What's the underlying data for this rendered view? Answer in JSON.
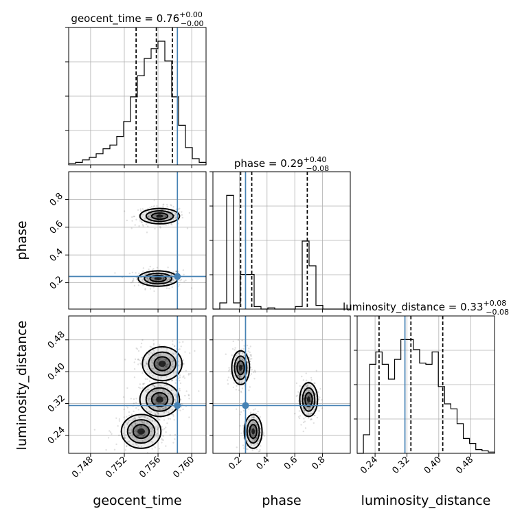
{
  "titles": {
    "geocent_time": {
      "name": "geocent_time",
      "value": "0.76",
      "plus": "+0.00",
      "minus": "−0.00"
    },
    "phase": {
      "name": "phase",
      "value": "0.29",
      "plus": "+0.40",
      "minus": "−0.08"
    },
    "luminosity_distance": {
      "name": "luminosity_distance",
      "value": "0.33",
      "plus": "+0.08",
      "minus": "−0.08"
    }
  },
  "axis_labels": {
    "x": [
      "geocent_time",
      "phase",
      "luminosity_distance"
    ],
    "y": [
      "phase",
      "luminosity_distance"
    ]
  },
  "ticks": {
    "geocent_time": [
      "0.748",
      "0.752",
      "0.756",
      "0.760"
    ],
    "phase_x": [
      "0.2",
      "0.4",
      "0.6",
      "0.8"
    ],
    "phase_y": [
      "0.2",
      "0.4",
      "0.6",
      "0.8"
    ],
    "luminosity_distance_x": [
      "0.24",
      "0.32",
      "0.40",
      "0.48"
    ],
    "luminosity_distance_y": [
      "0.24",
      "0.32",
      "0.40",
      "0.48"
    ]
  },
  "colors": {
    "truth": "#4682b4",
    "contour": "#000000",
    "grid": "#b0b0b0"
  },
  "chart_data": {
    "type": "corner",
    "parameters": [
      "geocent_time",
      "phase",
      "luminosity_distance"
    ],
    "ranges": {
      "geocent_time": [
        0.7454,
        0.7617
      ],
      "phase": [
        0.01,
        1.0
      ],
      "luminosity_distance": [
        0.195,
        0.54
      ]
    },
    "truths": {
      "geocent_time": 0.7583,
      "phase": 0.245,
      "luminosity_distance": 0.315
    },
    "quantiles": {
      "geocent_time": [
        0.7534,
        0.7558,
        0.7577
      ],
      "phase": [
        0.21,
        0.29,
        0.69
      ],
      "luminosity_distance": [
        0.25,
        0.33,
        0.41
      ]
    },
    "histograms": {
      "geocent_time": {
        "edges_range": [
          0.7454,
          0.7617
        ],
        "counts": [
          0.01,
          0.02,
          0.04,
          0.06,
          0.09,
          0.13,
          0.16,
          0.23,
          0.35,
          0.55,
          0.72,
          0.86,
          0.94,
          1.0,
          0.84,
          0.55,
          0.32,
          0.14,
          0.05,
          0.02
        ]
      },
      "phase": {
        "edges_range": [
          0.01,
          1.0
        ],
        "counts": [
          0,
          0.05,
          0.92,
          0.05,
          0.28,
          0.28,
          0.02,
          0,
          0.01,
          0,
          0,
          0,
          0.02,
          0.55,
          0.35,
          0.03,
          0,
          0,
          0,
          0
        ]
      },
      "luminosity_distance": {
        "edges_range": [
          0.195,
          0.54
        ],
        "counts": [
          0,
          0.15,
          0.72,
          0.82,
          0.72,
          0.6,
          0.76,
          0.92,
          0.92,
          0.84,
          0.73,
          0.72,
          0.82,
          0.54,
          0.4,
          0.36,
          0.24,
          0.12,
          0.08,
          0.03,
          0.02,
          0.01
        ]
      }
    },
    "density_peaks": [
      {
        "x": "geocent_time",
        "y": "phase",
        "modes": [
          [
            0.756,
            0.23
          ],
          [
            0.7562,
            0.68
          ]
        ]
      },
      {
        "x": "geocent_time",
        "y": "luminosity_distance",
        "modes": [
          [
            0.7562,
            0.33
          ],
          [
            0.7565,
            0.42
          ],
          [
            0.754,
            0.25
          ]
        ]
      },
      {
        "x": "phase",
        "y": "luminosity_distance",
        "modes": [
          [
            0.21,
            0.41
          ],
          [
            0.3,
            0.25
          ],
          [
            0.7,
            0.33
          ]
        ]
      }
    ]
  }
}
